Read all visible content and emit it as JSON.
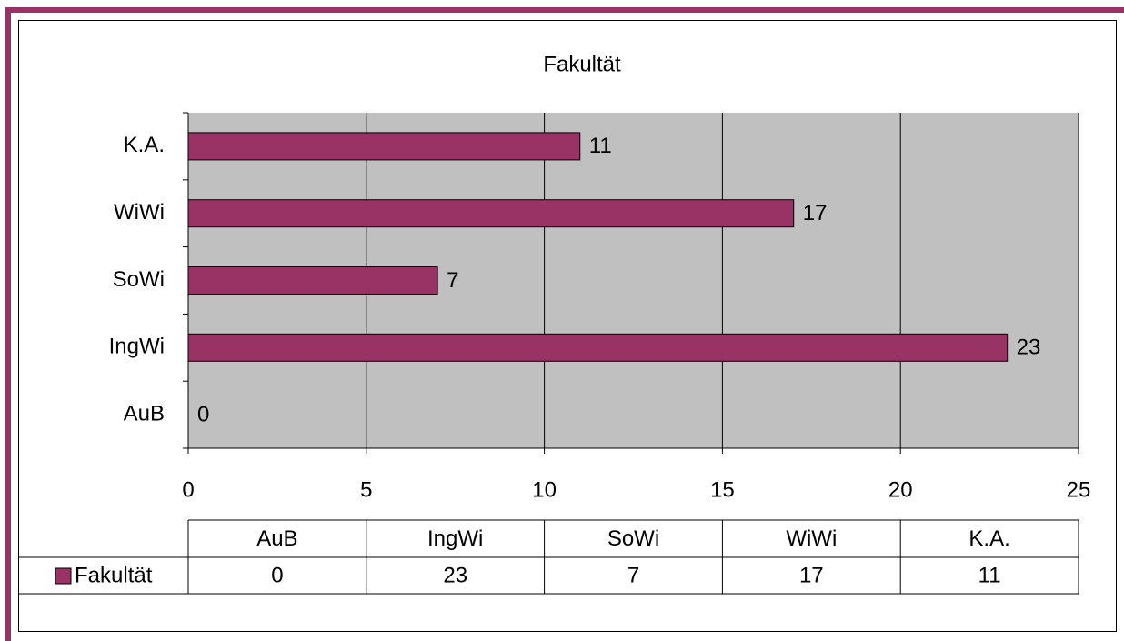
{
  "chart_data": {
    "type": "bar",
    "orientation": "horizontal",
    "title": "Fakultät",
    "categories": [
      "AuB",
      "IngWi",
      "SoWi",
      "WiWi",
      "K.A."
    ],
    "series": [
      {
        "name": "Fakultät",
        "color": "#993366",
        "values": [
          0,
          23,
          7,
          17,
          11
        ]
      }
    ],
    "xlim": [
      0,
      25
    ],
    "xticks": [
      0,
      5,
      10,
      15,
      20,
      25
    ],
    "grid": true,
    "data_table": true
  }
}
